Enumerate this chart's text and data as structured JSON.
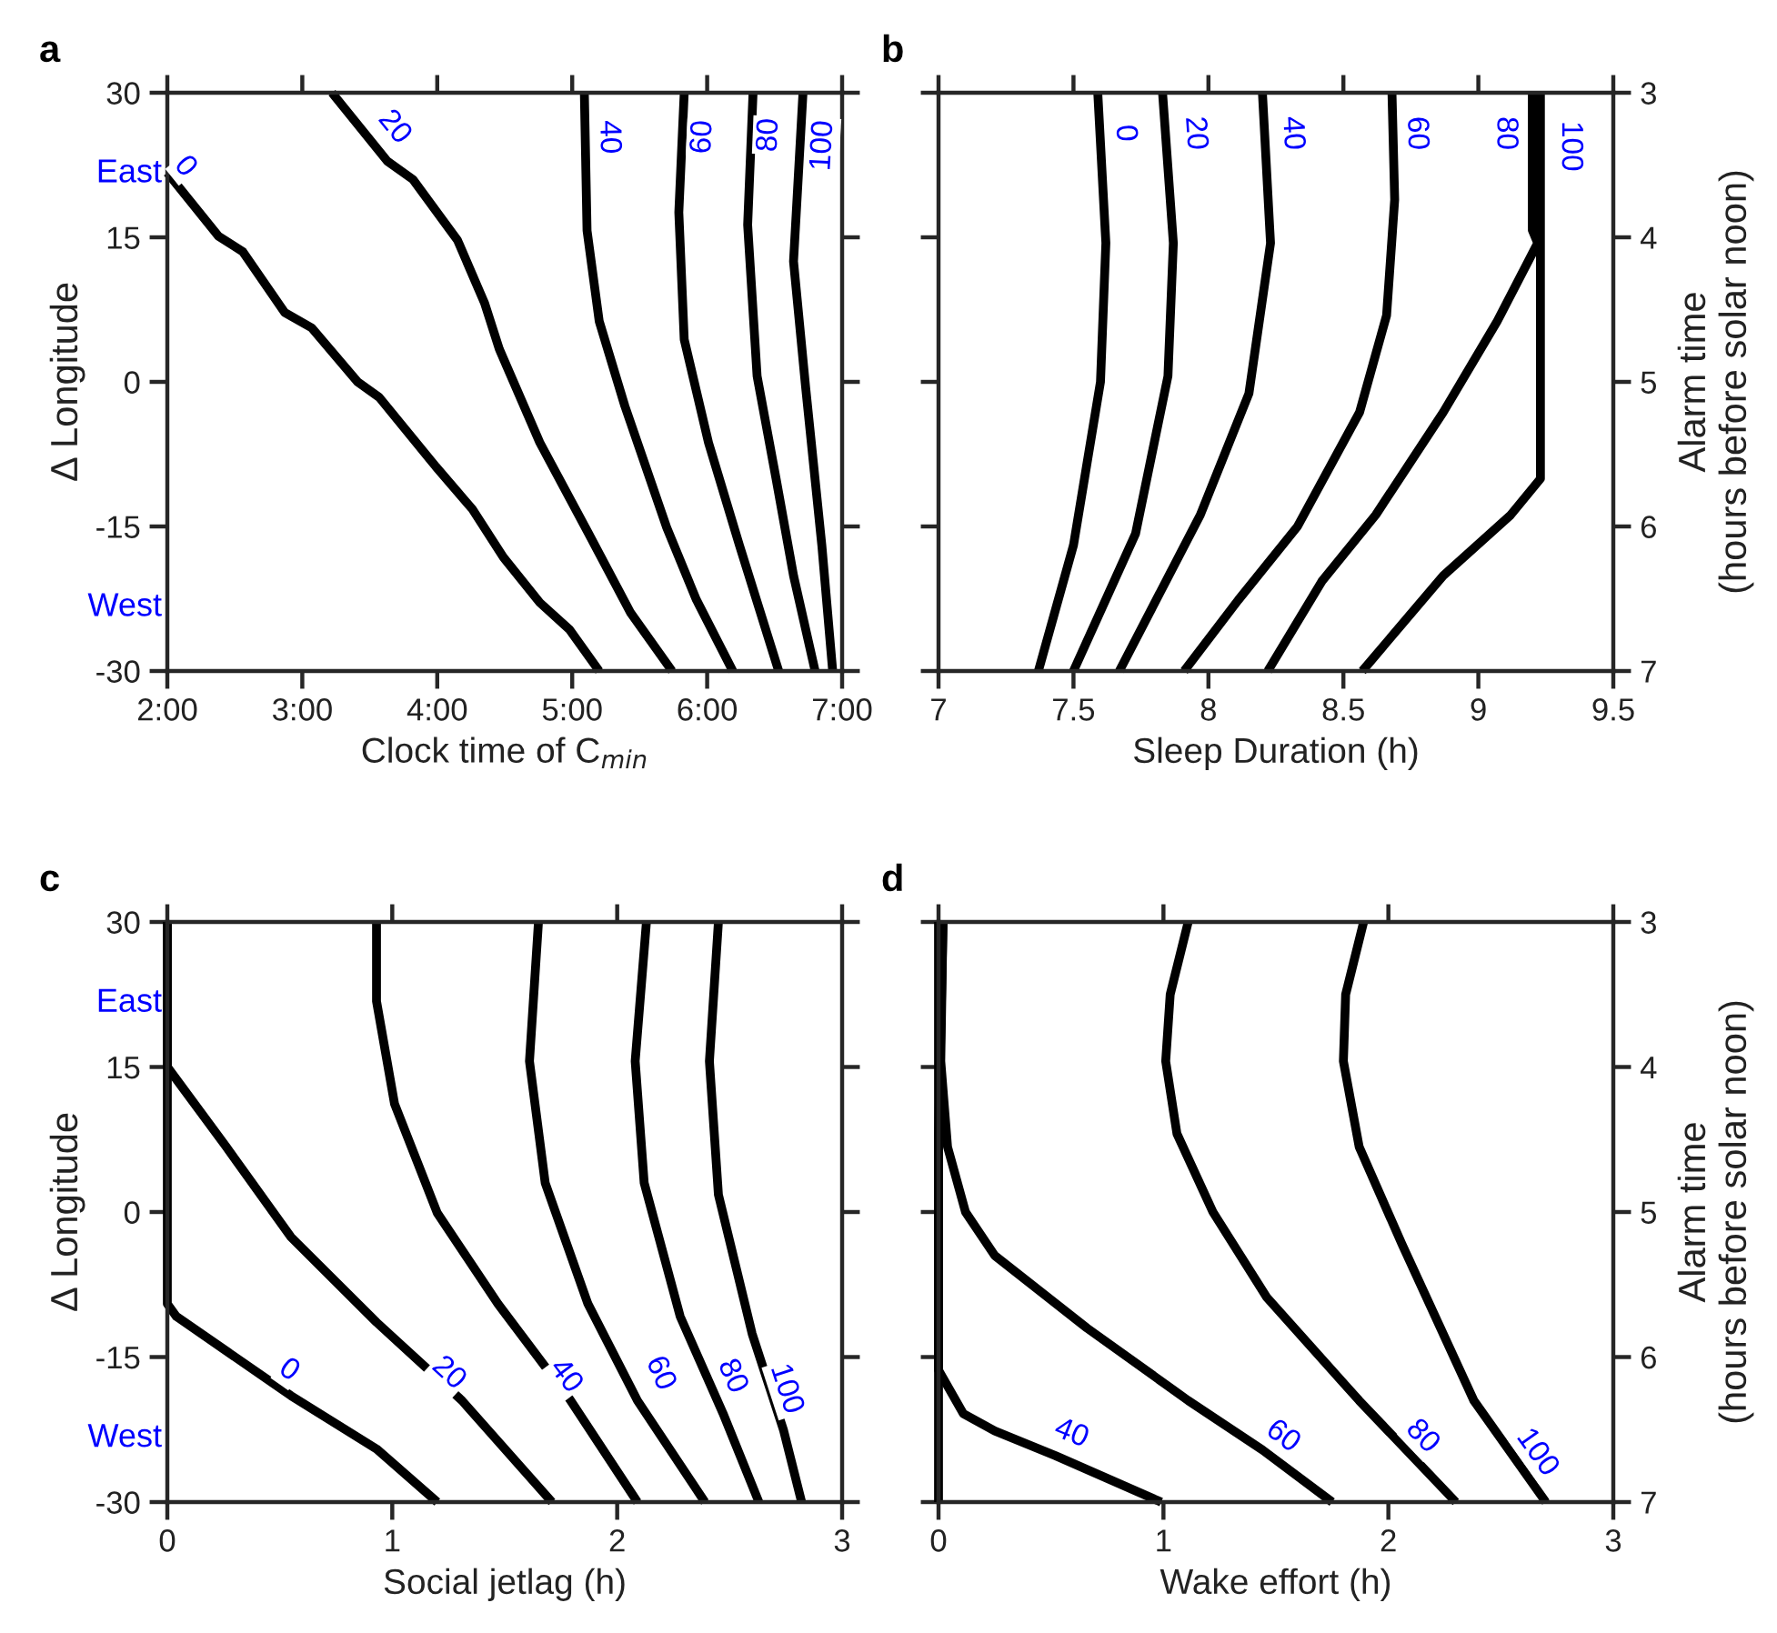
{
  "chart_data": [
    {
      "type": "line",
      "title": "a",
      "xlabel": "Clock time of C$_{min}$",
      "ylabel": "Δ Longitude",
      "grid": false,
      "line_style": "solid",
      "marker": "none",
      "xlim": [
        2,
        7
      ],
      "xticks": [
        {
          "value": 2,
          "label": "2:00"
        },
        {
          "value": 3,
          "label": "3:00"
        },
        {
          "value": 4,
          "label": "4:00"
        },
        {
          "value": 5,
          "label": "5:00"
        },
        {
          "value": 6,
          "label": "6:00"
        },
        {
          "value": 7,
          "label": "7:00"
        }
      ],
      "ylim": [
        -30,
        30
      ],
      "yticks": [
        -30,
        -15,
        0,
        15,
        30
      ],
      "series": [
        {
          "color": "#000000",
          "x": [
            2.0,
            2.38,
            2.56,
            2.87,
            3.07,
            3.41,
            3.57,
            3.99,
            4.26,
            4.49,
            4.76,
            4.98,
            5.2
          ],
          "values": [
            21.7,
            15.1,
            13.5,
            7.2,
            5.6,
            0,
            -1.6,
            -8.8,
            -13.2,
            -18.2,
            -22.9,
            -25.7,
            -30
          ]
        },
        {
          "color": "#000000",
          "x": [
            3.22,
            3.63,
            3.82,
            4.15,
            4.35,
            4.46,
            4.76,
            5.12,
            5.43,
            5.74
          ],
          "values": [
            30,
            22.9,
            21,
            14.7,
            8.2,
            3.4,
            -6.3,
            -15.7,
            -23.9,
            -30
          ]
        },
        {
          "color": "#000000",
          "x": [
            5.09,
            5.11,
            5.2,
            5.39,
            5.7,
            5.92,
            6.19
          ],
          "values": [
            30,
            15.7,
            6.3,
            -2.5,
            -15.1,
            -22.6,
            -30
          ]
        },
        {
          "color": "#000000",
          "x": [
            5.83,
            5.79,
            5.83,
            6.01,
            6.24,
            6.53
          ],
          "values": [
            30,
            17.6,
            4.4,
            -6.3,
            -17,
            -30
          ]
        },
        {
          "color": "#000000",
          "x": [
            6.34,
            6.3,
            6.37,
            6.51,
            6.64,
            6.8
          ],
          "values": [
            30,
            16.3,
            0.6,
            -10,
            -20.1,
            -30
          ]
        },
        {
          "color": "#000000",
          "x": [
            6.71,
            6.64,
            6.73,
            6.85,
            6.93
          ],
          "values": [
            30,
            12.5,
            -0.6,
            -17,
            -30
          ]
        }
      ],
      "annotations": [
        {
          "text": "0",
          "x": 2.13,
          "y": 22.3
        },
        {
          "text": "20",
          "x": 3.68,
          "y": 26.4
        },
        {
          "text": "40",
          "x": 5.27,
          "y": 25.4
        },
        {
          "text": "60",
          "x": 5.97,
          "y": 25.4
        },
        {
          "text": "80",
          "x": 6.46,
          "y": 25.6
        },
        {
          "text": "100",
          "x": 6.86,
          "y": 24.5
        },
        "East",
        "West"
      ]
    },
    {
      "type": "line",
      "title": "b",
      "xlabel": "Sleep Duration (h)",
      "ylabel": "Alarm time\n(hours before solar noon)",
      "grid": false,
      "line_style": "solid",
      "marker": "none",
      "xlim": [
        7,
        9.5
      ],
      "xticks": [
        7,
        7.5,
        8,
        8.5,
        9,
        9.5
      ],
      "ylim": [
        7,
        3
      ],
      "yticks": [
        3,
        4,
        5,
        6,
        7
      ],
      "series": [
        {
          "color": "#000000",
          "x": [
            7.59,
            7.62,
            7.6,
            7.5,
            7.37
          ],
          "values": [
            3,
            4.04,
            5,
            6.13,
            7
          ]
        },
        {
          "color": "#000000",
          "x": [
            7.83,
            7.87,
            7.85,
            7.73,
            7.5
          ],
          "values": [
            3,
            4.04,
            4.96,
            6.05,
            7
          ]
        },
        {
          "color": "#000000",
          "x": [
            8.2,
            8.23,
            8.15,
            7.97,
            7.67
          ],
          "values": [
            3,
            4.04,
            5.08,
            5.92,
            7
          ]
        },
        {
          "color": "#000000",
          "x": [
            8.68,
            8.69,
            8.66,
            8.56,
            8.33,
            8.11,
            7.91
          ],
          "values": [
            3,
            3.74,
            4.54,
            5.21,
            6.0,
            6.51,
            7
          ]
        },
        {
          "color": "#000000",
          "x": [
            9.2,
            9.2,
            9.22,
            9.07,
            8.87,
            8.62,
            8.42,
            8.22
          ],
          "values": [
            3,
            3.95,
            4.04,
            4.58,
            5.21,
            5.92,
            6.38,
            7
          ]
        },
        {
          "color": "#000000",
          "x": [
            9.23,
            9.23,
            9.12,
            8.87,
            8.57
          ],
          "values": [
            3,
            5.67,
            5.92,
            6.34,
            7
          ]
        }
      ],
      "annotations": [
        {
          "text": "0",
          "x": 7.69,
          "y": 3.28
        },
        {
          "text": "20",
          "x": 7.95,
          "y": 3.28
        },
        {
          "text": "40",
          "x": 8.31,
          "y": 3.28
        },
        {
          "text": "60",
          "x": 8.77,
          "y": 3.28
        },
        {
          "text": "80",
          "x": 9.1,
          "y": 3.28
        },
        {
          "text": "100",
          "x": 9.34,
          "y": 3.37
        }
      ]
    },
    {
      "type": "line",
      "title": "c",
      "xlabel": "Social jetlag (h)",
      "ylabel": "Δ Longitude",
      "grid": false,
      "line_style": "solid",
      "marker": "none",
      "xlim": [
        0,
        3
      ],
      "xticks": [
        0,
        1,
        2,
        3
      ],
      "ylim": [
        -30,
        30
      ],
      "yticks": [
        -30,
        -15,
        0,
        15,
        30
      ],
      "series": [
        {
          "color": "#000000",
          "x": [
            0,
            0,
            0.04,
            0.55,
            0.93,
            1.2
          ],
          "values": [
            30,
            -9.5,
            -10.8,
            -19,
            -24.5,
            -30
          ]
        },
        {
          "color": "#000000",
          "x": [
            0,
            0,
            0.26,
            0.55,
            0.93,
            1.31,
            1.71
          ],
          "values": [
            30,
            15,
            6.8,
            -2.6,
            -11.4,
            -19.5,
            -30
          ]
        },
        {
          "color": "#000000",
          "x": [
            0.93,
            0.93,
            1.01,
            1.2,
            1.47,
            1.79,
            2.09
          ],
          "values": [
            30,
            21.8,
            11.2,
            -0.1,
            -9.5,
            -19.4,
            -30
          ]
        },
        {
          "color": "#000000",
          "x": [
            1.65,
            1.61,
            1.68,
            1.87,
            2.09,
            2.39
          ],
          "values": [
            30,
            15.6,
            3,
            -9.5,
            -19.5,
            -30
          ]
        },
        {
          "color": "#000000",
          "x": [
            2.13,
            2.08,
            2.12,
            2.28,
            2.47,
            2.63
          ],
          "values": [
            30,
            15.6,
            3,
            -10.8,
            -20.8,
            -30
          ]
        },
        {
          "color": "#000000",
          "x": [
            2.45,
            2.41,
            2.45,
            2.6,
            2.74,
            2.82
          ],
          "values": [
            30,
            15.6,
            1.8,
            -12.6,
            -22.6,
            -30
          ]
        }
      ],
      "annotations": [
        {
          "text": "0",
          "x": 0.54,
          "y": -16.4
        },
        {
          "text": "20",
          "x": 1.25,
          "y": -16.7
        },
        {
          "text": "40",
          "x": 1.77,
          "y": -17
        },
        {
          "text": "60",
          "x": 2.19,
          "y": -16.7
        },
        {
          "text": "80",
          "x": 2.51,
          "y": -17
        },
        {
          "text": "100",
          "x": 2.75,
          "y": -18.3
        },
        "East",
        "West"
      ]
    },
    {
      "type": "line",
      "title": "d",
      "xlabel": "Wake effort (h)",
      "ylabel": "Alarm time\n(hours before solar noon)",
      "grid": false,
      "line_style": "solid",
      "marker": "none",
      "xlim": [
        0,
        3
      ],
      "xticks": [
        0,
        1,
        2,
        3
      ],
      "ylim": [
        7,
        3
      ],
      "yticks": [
        3,
        4,
        5,
        6,
        7
      ],
      "series": [
        {
          "color": "#000000",
          "x": [
            0.02,
            0,
            0
          ],
          "values": [
            3,
            4.5,
            7
          ]
        },
        {
          "color": "#000000",
          "x": [
            0,
            0,
            0.11,
            0.25,
            0.52,
            0.99
          ],
          "values": [
            3,
            6.09,
            6.39,
            6.51,
            6.68,
            7
          ]
        },
        {
          "color": "#000000",
          "x": [
            0.02,
            0.01,
            0.04,
            0.12,
            0.25,
            0.66,
            1.11,
            1.44,
            1.75
          ],
          "values": [
            3,
            3.96,
            4.55,
            5.0,
            5.3,
            5.8,
            6.3,
            6.64,
            7
          ]
        },
        {
          "color": "#000000",
          "x": [
            1.11,
            1.03,
            1.01,
            1.06,
            1.22,
            1.46,
            1.87,
            2.3
          ],
          "values": [
            3,
            3.5,
            3.96,
            4.46,
            5.0,
            5.59,
            6.3,
            7
          ]
        },
        {
          "color": "#000000",
          "x": [
            1.89,
            1.81,
            1.8,
            1.87,
            2.06,
            2.38,
            2.7
          ],
          "values": [
            3,
            3.5,
            3.96,
            4.55,
            5.22,
            6.3,
            7
          ]
        }
      ],
      "annotations": [
        {
          "text": "40",
          "x": 0.59,
          "y": 6.53
        },
        {
          "text": "60",
          "x": 1.53,
          "y": 6.55
        },
        {
          "text": "80",
          "x": 2.15,
          "y": 6.55
        },
        {
          "text": "100",
          "x": 2.66,
          "y": 6.66
        }
      ]
    }
  ]
}
